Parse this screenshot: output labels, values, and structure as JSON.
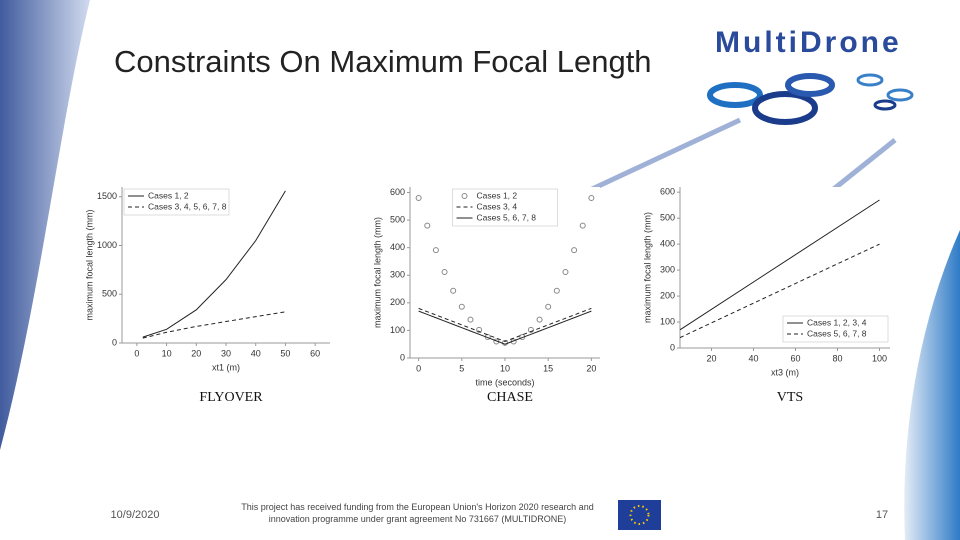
{
  "title": "Constraints On Maximum Focal Length",
  "logo": "MultiDrone",
  "footer": {
    "date": "10/9/2020",
    "funding": "This project has received funding from the European Union's Horizon 2020 research and innovation programme under grant agreement No 731667 (MULTIDRONE)",
    "page": "17"
  },
  "chart_data": [
    {
      "type": "line",
      "caption": "FLYOVER",
      "ylabel": "maximum focal length (mm)",
      "xlabel": "xt1 (m)",
      "x": [
        2,
        10,
        20,
        30,
        40,
        50
      ],
      "series": [
        {
          "name": "Cases 1, 2",
          "color": "#222222",
          "line_style": "solid",
          "values": [
            60,
            140,
            340,
            650,
            1050,
            1560
          ]
        },
        {
          "name": "Cases 3, 4, 5, 6, 7, 8",
          "color": "#222222",
          "line_style": "dashed",
          "values": [
            50,
            110,
            170,
            220,
            270,
            320
          ]
        }
      ],
      "xlim": [
        -5,
        65
      ],
      "xticks": [
        0,
        10,
        20,
        30,
        40,
        50,
        60
      ],
      "ylim": [
        0,
        1600
      ],
      "yticks": [
        0,
        500,
        1000,
        1500
      ],
      "legend": "upper left"
    },
    {
      "type": "line",
      "caption": "CHASE",
      "ylabel": "maximum focal length (mm)",
      "xlabel": "time (seconds)",
      "x": [
        0,
        1,
        2,
        3,
        4,
        5,
        6,
        7,
        8,
        9,
        10,
        11,
        12,
        13,
        14,
        15,
        16,
        17,
        18,
        19,
        20
      ],
      "series": [
        {
          "name": "Cases 1, 2",
          "color": "#888888",
          "line_style": "circles",
          "values": [
            580,
            480,
            391,
            312,
            244,
            186,
            139,
            102,
            76,
            60,
            55,
            60,
            76,
            102,
            139,
            186,
            244,
            312,
            391,
            480,
            580
          ]
        },
        {
          "name": "Cases 3, 4",
          "color": "#222222",
          "line_style": "dashed",
          "values": [
            180,
            168,
            156,
            144,
            132,
            120,
            108,
            96,
            84,
            72,
            60,
            72,
            84,
            96,
            108,
            120,
            132,
            144,
            156,
            168,
            180
          ]
        },
        {
          "name": "Cases 5, 6, 7, 8",
          "color": "#222222",
          "line_style": "solid",
          "values": [
            170,
            158,
            146,
            134,
            122,
            110,
            98,
            86,
            74,
            62,
            50,
            62,
            74,
            86,
            98,
            110,
            122,
            134,
            146,
            158,
            170
          ]
        }
      ],
      "xlim": [
        -1,
        21
      ],
      "xticks": [
        0,
        5,
        10,
        15,
        20
      ],
      "ylim": [
        0,
        620
      ],
      "yticks": [
        0,
        100,
        200,
        300,
        400,
        500,
        600
      ],
      "legend": "upper center"
    },
    {
      "type": "line",
      "caption": "VTS",
      "ylabel": "maximum focal length (mm)",
      "xlabel": "xt3 (m)",
      "x": [
        5,
        100
      ],
      "series": [
        {
          "name": "Cases 1, 2, 3, 4",
          "color": "#222222",
          "line_style": "solid",
          "values": [
            70,
            570
          ]
        },
        {
          "name": "Cases 5, 6, 7, 8",
          "color": "#222222",
          "line_style": "dashed",
          "values": [
            40,
            400
          ]
        }
      ],
      "xlim": [
        5,
        105
      ],
      "xticks": [
        20,
        40,
        60,
        80,
        100
      ],
      "ylim": [
        0,
        620
      ],
      "yticks": [
        0,
        100,
        200,
        300,
        400,
        500,
        600
      ],
      "legend": "lower right"
    }
  ]
}
